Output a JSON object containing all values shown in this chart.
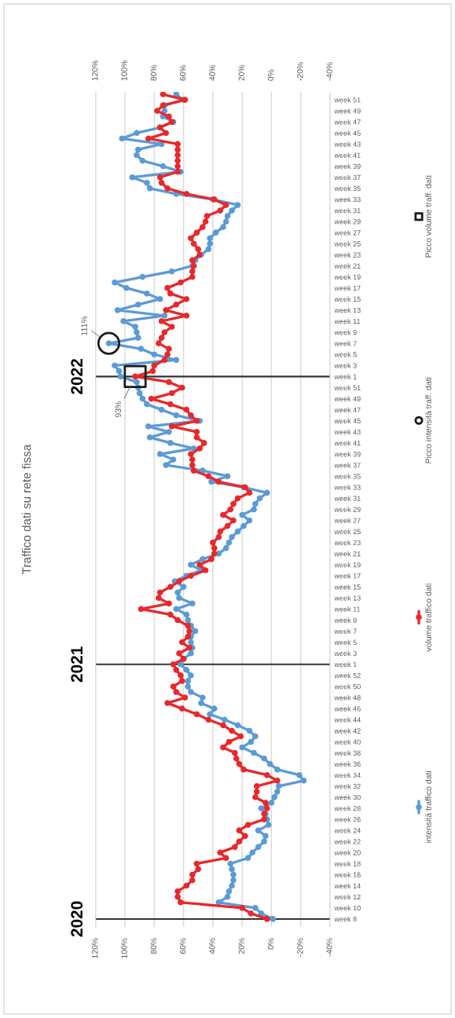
{
  "chart_data": {
    "type": "line",
    "title": "Traffico dati su rete fissa",
    "orientation": "horizontal",
    "x": [
      "2022-12-26",
      "2022-12-19",
      "2022-12-12",
      "2022-12-05",
      "2022-11-28",
      "2022-11-21",
      "2022-11-14",
      "2022-11-07",
      "2022-10-31",
      "2022-10-24",
      "2022-10-17",
      "2022-10-10",
      "2022-10-03",
      "2022-09-26",
      "2022-09-19",
      "2022-09-12",
      "2022-09-05",
      "2022-08-29",
      "2022-08-22",
      "2022-08-15",
      "2022-08-08",
      "2022-08-01",
      "2022-07-25",
      "2022-07-18",
      "2022-07-11",
      "2022-07-04",
      "2022-06-27",
      "2022-06-20",
      "2022-06-13",
      "2022-06-06",
      "2022-05-30",
      "2022-05-23",
      "2022-05-16",
      "2022-05-09",
      "2022-05-02",
      "2022-04-25",
      "2022-04-18",
      "2022-04-11",
      "2022-04-04",
      "2022-03-28",
      "2022-03-21",
      "2022-03-14",
      "2022-03-07",
      "2022-02-28",
      "2022-02-21",
      "2022-02-14",
      "2022-02-07",
      "2022-01-31",
      "2022-01-24",
      "2022-01-17",
      "2022-01-10",
      "2022-01-03",
      "2021-12-27",
      "2021-12-20",
      "2021-12-13",
      "2021-12-06",
      "2021-11-29",
      "2021-11-22",
      "2021-11-15",
      "2021-11-08",
      "2021-11-01",
      "2021-10-25",
      "2021-10-18",
      "2021-10-11",
      "2021-10-04",
      "2021-09-27",
      "2021-09-20",
      "2021-09-13",
      "2021-09-06",
      "2021-08-30",
      "2021-08-23",
      "2021-08-16",
      "2021-08-09",
      "2021-08-02",
      "2021-07-26",
      "2021-07-19",
      "2021-07-12",
      "2021-07-05",
      "2021-06-28",
      "2021-06-21",
      "2021-06-14",
      "2021-06-07",
      "2021-05-31",
      "2021-05-24",
      "2021-05-17",
      "2021-05-10",
      "2021-05-03",
      "2021-04-26",
      "2021-04-19",
      "2021-04-12",
      "2021-04-05",
      "2021-03-29",
      "2021-03-22",
      "2021-03-15",
      "2021-03-08",
      "2021-03-01",
      "2021-02-22",
      "2021-02-15",
      "2021-02-08",
      "2021-02-01",
      "2021-01-25",
      "2021-01-18",
      "2021-01-11",
      "2021-01-04",
      "2020-12-28",
      "2020-12-21",
      "2020-12-14",
      "2020-12-07",
      "2020-11-30",
      "2020-11-23",
      "2020-11-16",
      "2020-11-09",
      "2020-11-02",
      "2020-10-26",
      "2020-10-19",
      "2020-10-12",
      "2020-10-05",
      "2020-09-28",
      "2020-09-21",
      "2020-09-14",
      "2020-09-07",
      "2020-08-31",
      "2020-08-24",
      "2020-08-17",
      "2020-08-10",
      "2020-08-03",
      "2020-07-27",
      "2020-07-20",
      "2020-07-13",
      "2020-07-06",
      "2020-06-29",
      "2020-06-22",
      "2020-06-15",
      "2020-06-08",
      "2020-06-01",
      "2020-05-25",
      "2020-05-18",
      "2020-05-11",
      "2020-05-04",
      "2020-04-27",
      "2020-04-20",
      "2020-04-13",
      "2020-04-06",
      "2020-03-30",
      "2020-03-23",
      "2020-03-16",
      "2020-03-09",
      "2020-03-02",
      "2020-02-24",
      "2020-02-17"
    ],
    "ylim": [
      "2020-02-07",
      "2022-12-29"
    ],
    "yticks": [
      {
        "value": "2022-12-19",
        "label": "week 51"
      },
      {
        "value": "2022-12-05",
        "label": "week 49"
      },
      {
        "value": "2022-11-21",
        "label": "week 47"
      },
      {
        "value": "2022-11-07",
        "label": "week 45"
      },
      {
        "value": "2022-10-24",
        "label": "week 43"
      },
      {
        "value": "2022-10-10",
        "label": "week 41"
      },
      {
        "value": "2022-09-26",
        "label": "week 39"
      },
      {
        "value": "2022-09-12",
        "label": "week 37"
      },
      {
        "value": "2022-08-29",
        "label": "week 35"
      },
      {
        "value": "2022-08-15",
        "label": "week 33"
      },
      {
        "value": "2022-08-01",
        "label": "week 31"
      },
      {
        "value": "2022-07-18",
        "label": "week 29"
      },
      {
        "value": "2022-07-04",
        "label": "week 27"
      },
      {
        "value": "2022-06-20",
        "label": "week 25"
      },
      {
        "value": "2022-06-06",
        "label": "week 23"
      },
      {
        "value": "2022-05-23",
        "label": "week 21"
      },
      {
        "value": "2022-05-09",
        "label": "week 19"
      },
      {
        "value": "2022-04-25",
        "label": "week 17"
      },
      {
        "value": "2022-04-11",
        "label": "week 15"
      },
      {
        "value": "2022-03-28",
        "label": "week 13"
      },
      {
        "value": "2022-03-14",
        "label": "week 11"
      },
      {
        "value": "2022-02-28",
        "label": "week 9"
      },
      {
        "value": "2022-02-14",
        "label": "week 7"
      },
      {
        "value": "2022-01-31",
        "label": "week 5"
      },
      {
        "value": "2022-01-17",
        "label": "week 3"
      },
      {
        "value": "2022-01-03",
        "label": "week 1"
      },
      {
        "value": "2021-12-20",
        "label": "week 51"
      },
      {
        "value": "2021-12-06",
        "label": "week 49"
      },
      {
        "value": "2021-11-22",
        "label": "week 47"
      },
      {
        "value": "2021-11-08",
        "label": "week 45"
      },
      {
        "value": "2021-10-25",
        "label": "week 43"
      },
      {
        "value": "2021-10-11",
        "label": "week 41"
      },
      {
        "value": "2021-09-27",
        "label": "week 39"
      },
      {
        "value": "2021-09-13",
        "label": "week 37"
      },
      {
        "value": "2021-08-30",
        "label": "week 35"
      },
      {
        "value": "2021-08-16",
        "label": "week 33"
      },
      {
        "value": "2021-08-02",
        "label": "week 31"
      },
      {
        "value": "2021-07-19",
        "label": "week 29"
      },
      {
        "value": "2021-07-05",
        "label": "week 27"
      },
      {
        "value": "2021-06-21",
        "label": "week 25"
      },
      {
        "value": "2021-06-07",
        "label": "week 23"
      },
      {
        "value": "2021-05-24",
        "label": "week 21"
      },
      {
        "value": "2021-05-10",
        "label": "week 19"
      },
      {
        "value": "2021-04-26",
        "label": "week 17"
      },
      {
        "value": "2021-04-12",
        "label": "week 15"
      },
      {
        "value": "2021-03-29",
        "label": "week 13"
      },
      {
        "value": "2021-03-15",
        "label": "week 11"
      },
      {
        "value": "2021-03-01",
        "label": "week 9"
      },
      {
        "value": "2021-02-15",
        "label": "week 7"
      },
      {
        "value": "2021-02-01",
        "label": "week 5"
      },
      {
        "value": "2021-01-18",
        "label": "week 3"
      },
      {
        "value": "2021-01-04",
        "label": "week 1"
      },
      {
        "value": "2020-12-21",
        "label": "week 52"
      },
      {
        "value": "2020-12-07",
        "label": "week 50"
      },
      {
        "value": "2020-11-23",
        "label": "week 48"
      },
      {
        "value": "2020-11-09",
        "label": "week 46"
      },
      {
        "value": "2020-10-26",
        "label": "week 44"
      },
      {
        "value": "2020-10-12",
        "label": "week 42"
      },
      {
        "value": "2020-09-28",
        "label": "week 40"
      },
      {
        "value": "2020-09-14",
        "label": "week 38"
      },
      {
        "value": "2020-08-31",
        "label": "week 36"
      },
      {
        "value": "2020-08-17",
        "label": "week 34"
      },
      {
        "value": "2020-08-03",
        "label": "week 32"
      },
      {
        "value": "2020-07-20",
        "label": "week 30"
      },
      {
        "value": "2020-07-06",
        "label": "week 28"
      },
      {
        "value": "2020-06-22",
        "label": "week 26"
      },
      {
        "value": "2020-06-08",
        "label": "week 24"
      },
      {
        "value": "2020-05-25",
        "label": "week 22"
      },
      {
        "value": "2020-05-11",
        "label": "week 20"
      },
      {
        "value": "2020-04-27",
        "label": "week 18"
      },
      {
        "value": "2020-04-13",
        "label": "week 16"
      },
      {
        "value": "2020-03-30",
        "label": "week 14"
      },
      {
        "value": "2020-03-16",
        "label": "week 12"
      },
      {
        "value": "2020-03-02",
        "label": "week 10"
      },
      {
        "value": "2020-02-17",
        "label": "week 8"
      }
    ],
    "series": [
      {
        "name": "intensità traffico dati",
        "color": "#5b9bd5",
        "values": [
          65,
          60,
          73,
          73,
          74,
          67,
          76,
          92,
          102,
          75,
          91,
          92,
          88,
          74,
          62,
          95,
          85,
          83,
          65,
          40,
          23,
          27,
          30,
          31,
          33,
          38,
          42,
          42,
          43,
          48,
          52,
          54,
          68,
          88,
          107,
          99,
          85,
          76,
          91,
          105,
          73,
          101,
          93,
          92,
          91,
          111,
          89,
          80,
          65,
          107,
          104,
          103,
          92,
          91,
          90,
          88,
          85,
          75,
          65,
          49,
          84,
          70,
          83,
          69,
          53,
          76,
          67,
          72,
          47,
          30,
          41,
          19,
          3,
          8,
          11,
          12,
          20,
          15,
          19,
          23,
          27,
          29,
          31,
          36,
          47,
          55,
          48,
          58,
          66,
          60,
          64,
          63,
          54,
          65,
          58,
          57,
          55,
          52,
          55,
          55,
          54,
          55,
          60,
          62,
          58,
          55,
          57,
          57,
          55,
          47,
          48,
          39,
          42,
          32,
          23,
          15,
          11,
          14,
          20,
          12,
          5,
          1,
          -4,
          -19,
          -22,
          -5,
          -4,
          -2,
          0,
          7,
          4,
          3,
          2,
          9,
          4,
          5,
          9,
          13,
          16,
          28,
          27,
          26,
          26,
          27,
          29,
          30,
          36,
          11,
          7,
          -1
        ]
      },
      {
        "name": "volume traffico dati",
        "color": "#e8282b",
        "values": [
          74,
          59,
          74,
          78,
          70,
          68,
          76,
          72,
          84,
          64,
          64,
          64,
          64,
          64,
          64,
          76,
          75,
          71,
          58,
          39,
          31,
          35,
          44,
          45,
          47,
          51,
          55,
          53,
          50,
          49,
          54,
          53,
          54,
          54,
          62,
          71,
          69,
          58,
          65,
          72,
          58,
          75,
          68,
          73,
          75,
          77,
          70,
          71,
          73,
          80,
          81,
          93,
          70,
          61,
          68,
          82,
          69,
          58,
          55,
          51,
          68,
          51,
          51,
          46,
          49,
          55,
          54,
          54,
          53,
          43,
          36,
          18,
          15,
          23,
          26,
          28,
          33,
          26,
          30,
          35,
          36,
          40,
          39,
          39,
          41,
          49,
          45,
          55,
          63,
          69,
          76,
          77,
          70,
          89,
          69,
          64,
          57,
          56,
          57,
          61,
          56,
          63,
          60,
          67,
          65,
          62,
          61,
          67,
          65,
          59,
          71,
          61,
          51,
          43,
          33,
          27,
          21,
          29,
          33,
          25,
          24,
          22,
          19,
          3,
          -4,
          10,
          10,
          11,
          4,
          3,
          5,
          5,
          16,
          22,
          18,
          22,
          25,
          35,
          31,
          51,
          50,
          54,
          54,
          58,
          64,
          64,
          62,
          20,
          14,
          3
        ]
      },
      {
        "name": "Picco intensità traff. dati",
        "type": "scatter",
        "color": "#1a1a1a",
        "values": [
          null,
          null,
          null,
          null,
          null,
          null,
          null,
          null,
          null,
          null,
          null,
          null,
          null,
          null,
          null,
          null,
          null,
          null,
          null,
          null,
          null,
          null,
          null,
          null,
          null,
          null,
          null,
          null,
          null,
          null,
          null,
          null,
          null,
          null,
          null,
          null,
          null,
          null,
          null,
          null,
          null,
          null,
          null,
          null,
          null,
          111,
          null,
          null,
          null,
          null,
          null,
          null,
          null,
          null,
          null,
          null,
          null,
          null,
          null,
          null,
          null,
          null,
          null,
          null,
          null,
          null,
          null,
          null,
          null,
          null,
          null,
          null,
          null,
          null,
          null,
          null,
          null,
          null,
          null,
          null,
          null,
          null,
          null,
          null,
          null,
          null,
          null,
          null,
          null,
          null,
          null,
          null,
          null,
          null,
          null,
          null,
          null,
          null,
          null,
          null,
          null,
          null,
          null,
          null,
          null,
          null,
          null,
          null,
          null,
          null,
          null,
          null,
          null,
          null,
          null,
          null,
          null,
          null,
          null,
          null,
          null,
          null,
          null,
          null,
          null,
          null,
          null,
          null,
          null,
          null,
          null,
          null,
          null,
          null,
          null,
          null,
          null,
          null,
          null,
          null,
          null,
          null,
          null,
          null,
          null,
          null,
          null,
          null,
          null,
          null
        ],
        "value_labels": [
          null,
          null,
          null,
          null,
          null,
          null,
          null,
          null,
          null,
          null,
          null,
          null,
          null,
          null,
          null,
          null,
          null,
          null,
          null,
          null,
          null,
          null,
          null,
          null,
          null,
          null,
          null,
          null,
          null,
          null,
          null,
          null,
          null,
          null,
          null,
          null,
          null,
          null,
          null,
          null,
          null,
          null,
          null,
          null,
          null,
          "111%",
          null,
          null,
          null,
          null,
          null,
          null,
          null,
          null,
          null,
          null,
          null,
          null,
          null,
          null,
          null,
          null,
          null,
          null,
          null,
          null,
          null,
          null,
          null,
          null,
          null,
          null,
          null,
          null,
          null,
          null,
          null,
          null,
          null,
          null,
          null,
          null,
          null,
          null,
          null,
          null,
          null,
          null,
          null,
          null,
          null,
          null,
          null,
          null,
          null,
          null,
          null,
          null,
          null,
          null,
          null,
          null,
          null,
          null,
          null,
          null,
          null,
          null,
          null,
          null,
          null,
          null,
          null,
          null,
          null,
          null,
          null,
          null,
          null,
          null,
          null,
          null,
          null,
          null,
          null,
          null,
          null,
          null,
          null,
          null,
          null,
          null,
          null,
          null,
          null,
          null,
          null,
          null,
          null,
          null,
          null,
          null,
          null,
          null,
          null,
          null,
          null,
          null,
          null,
          null
        ]
      },
      {
        "name": "Picco volume traff. dati",
        "type": "scatter",
        "marker": "square",
        "color": "#1a1a1a",
        "values": [
          null,
          null,
          null,
          null,
          null,
          null,
          null,
          null,
          null,
          null,
          null,
          null,
          null,
          null,
          null,
          null,
          null,
          null,
          null,
          null,
          null,
          null,
          null,
          null,
          null,
          null,
          null,
          null,
          null,
          null,
          null,
          null,
          null,
          null,
          null,
          null,
          null,
          null,
          null,
          null,
          null,
          null,
          null,
          null,
          null,
          null,
          null,
          null,
          null,
          null,
          null,
          93,
          null,
          null,
          null,
          null,
          null,
          null,
          null,
          null,
          null,
          null,
          null,
          null,
          null,
          null,
          null,
          null,
          null,
          null,
          null,
          null,
          null,
          null,
          null,
          null,
          null,
          null,
          null,
          null,
          null,
          null,
          null,
          null,
          null,
          null,
          null,
          null,
          null,
          null,
          null,
          null,
          null,
          null,
          null,
          null,
          null,
          null,
          null,
          null,
          null,
          null,
          null,
          null,
          null,
          null,
          null,
          null,
          null,
          null,
          null,
          null,
          null,
          null,
          null,
          null,
          null,
          null,
          null,
          null,
          null,
          null,
          null,
          null,
          null,
          null,
          null,
          null,
          null,
          null,
          null,
          null,
          null,
          null,
          null,
          null,
          null,
          null,
          null,
          null,
          null,
          null,
          null,
          null,
          null,
          null,
          null,
          null,
          null,
          null
        ],
        "value_labels": [
          null,
          null,
          null,
          null,
          null,
          null,
          null,
          null,
          null,
          null,
          null,
          null,
          null,
          null,
          null,
          null,
          null,
          null,
          null,
          null,
          null,
          null,
          null,
          null,
          null,
          null,
          null,
          null,
          null,
          null,
          null,
          null,
          null,
          null,
          null,
          null,
          null,
          null,
          null,
          null,
          null,
          null,
          null,
          null,
          null,
          null,
          null,
          null,
          null,
          null,
          null,
          "93%",
          null,
          null,
          null,
          null,
          null,
          null,
          null,
          null,
          null,
          null,
          null,
          null,
          null,
          null,
          null,
          null,
          null,
          null,
          null,
          null,
          null,
          null,
          null,
          null,
          null,
          null,
          null,
          null,
          null,
          null,
          null,
          null,
          null,
          null,
          null,
          null,
          null,
          null,
          null,
          null,
          null,
          null,
          null,
          null,
          null,
          null,
          null,
          null,
          null,
          null,
          null,
          null,
          null,
          null,
          null,
          null,
          null,
          null,
          null,
          null,
          null,
          null,
          null,
          null,
          null,
          null,
          null,
          null,
          null,
          null,
          null,
          null,
          null,
          null,
          null,
          null,
          null,
          null,
          null,
          null,
          null,
          null,
          null,
          null,
          null,
          null,
          null,
          null,
          null,
          null,
          null,
          null,
          null,
          null,
          null,
          null,
          null,
          null
        ]
      }
    ],
    "xlim": [
      120,
      -40
    ],
    "xticks": [
      {
        "value": 120,
        "label": "120%"
      },
      {
        "value": 100,
        "label": "100%"
      },
      {
        "value": 80,
        "label": "80%"
      },
      {
        "value": 60,
        "label": "60%"
      },
      {
        "value": 40,
        "label": "40%"
      },
      {
        "value": 20,
        "label": "20%"
      },
      {
        "value": 0,
        "label": "0%"
      },
      {
        "value": -20,
        "label": "-20%"
      },
      {
        "value": -40,
        "label": "-40%"
      }
    ],
    "x2lim": [
      120,
      -40
    ],
    "x2ticks": [
      {
        "value": 120,
        "label": "120%"
      },
      {
        "value": 100,
        "label": "100%"
      },
      {
        "value": 80,
        "label": "80%"
      },
      {
        "value": 60,
        "label": "60%"
      },
      {
        "value": 40,
        "label": "40%"
      },
      {
        "value": 20,
        "label": "20%"
      },
      {
        "value": 0,
        "label": "0%"
      },
      {
        "value": -20,
        "label": "-20%"
      },
      {
        "value": -40,
        "label": "-40%"
      }
    ],
    "ref_lines": [
      {
        "axis": "y",
        "value": "2022-01-03",
        "label": "2022",
        "color": "#333333"
      },
      {
        "axis": "y",
        "value": "2021-01-04",
        "label": "2021",
        "color": "#333333"
      },
      {
        "axis": "y",
        "value": "2020-02-17",
        "label": "2020",
        "color": "#333333"
      }
    ],
    "grid": "x",
    "legend": "right",
    "marker": "circle",
    "line_style": "solid"
  }
}
